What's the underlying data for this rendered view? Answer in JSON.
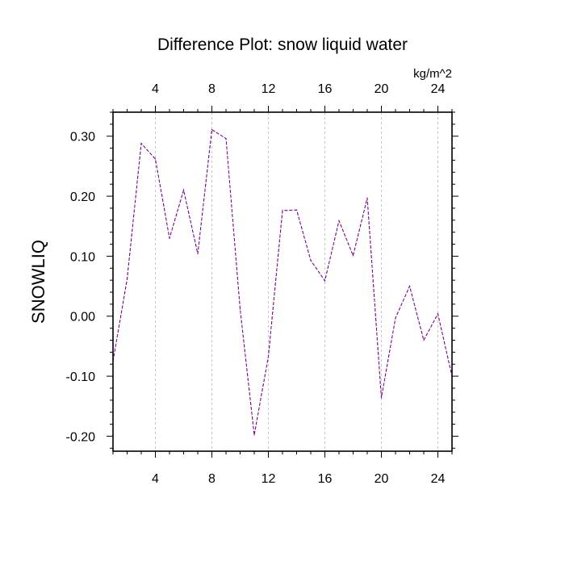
{
  "chart_data": {
    "type": "line",
    "title": "Difference Plot: snow liquid water",
    "ylabel": "SNOWLIQ",
    "units_label": "kg/m^2",
    "xlim": [
      1,
      25
    ],
    "ylim": [
      -0.225,
      0.34
    ],
    "x_ticks": [
      4,
      8,
      12,
      16,
      20,
      24
    ],
    "x_tick_labels": [
      "4",
      "8",
      "12",
      "16",
      "20",
      "24"
    ],
    "y_ticks": [
      -0.2,
      -0.1,
      0.0,
      0.1,
      0.2,
      0.3
    ],
    "y_tick_labels": [
      "-0.20",
      "-0.10",
      "0.00",
      "0.10",
      "0.20",
      "0.30"
    ],
    "grid": "x-dashed",
    "bottom_axis_color": "#ff0000",
    "top_axis_color": "#0000ff",
    "series": [
      {
        "name": "overlay-blue",
        "color": "#0000ff",
        "x": [
          1,
          2,
          3,
          4,
          5,
          6,
          7,
          8,
          9,
          10,
          11,
          12,
          13,
          14,
          15,
          16,
          17,
          18,
          19,
          20,
          21,
          22,
          23,
          24,
          25
        ],
        "values": [
          -0.075,
          0.062,
          0.288,
          0.262,
          0.13,
          0.21,
          0.104,
          0.311,
          0.296,
          0.012,
          -0.198,
          -0.067,
          0.176,
          0.177,
          0.093,
          0.059,
          0.159,
          0.101,
          0.197,
          -0.136,
          -0.003,
          0.05,
          -0.04,
          0.004,
          -0.1
        ]
      },
      {
        "name": "overlay-red",
        "color": "#ff0000",
        "x": [
          1,
          2,
          3,
          4,
          5,
          6,
          7,
          8,
          9,
          10,
          11,
          12,
          13,
          14,
          15,
          16,
          17,
          18,
          19,
          20,
          21,
          22,
          23,
          24,
          25
        ],
        "values": [
          -0.075,
          0.062,
          0.288,
          0.262,
          0.13,
          0.21,
          0.104,
          0.311,
          0.296,
          0.012,
          -0.198,
          -0.067,
          0.176,
          0.177,
          0.093,
          0.059,
          0.159,
          0.101,
          0.197,
          -0.136,
          -0.003,
          0.05,
          -0.04,
          0.004,
          -0.1
        ]
      }
    ]
  }
}
